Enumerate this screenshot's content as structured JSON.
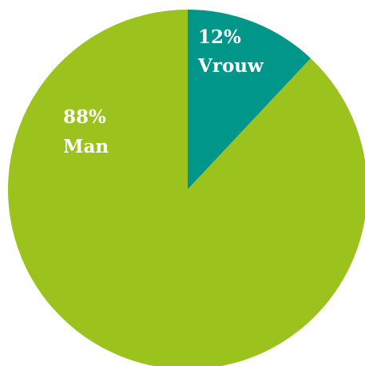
{
  "chart_data": {
    "type": "pie",
    "slices": [
      {
        "percent_label": "12%",
        "name": "Vrouw",
        "value": 12,
        "color": "#00968a"
      },
      {
        "percent_label": "88%",
        "name": "Man",
        "value": 88,
        "color": "#9cc31d"
      }
    ]
  }
}
